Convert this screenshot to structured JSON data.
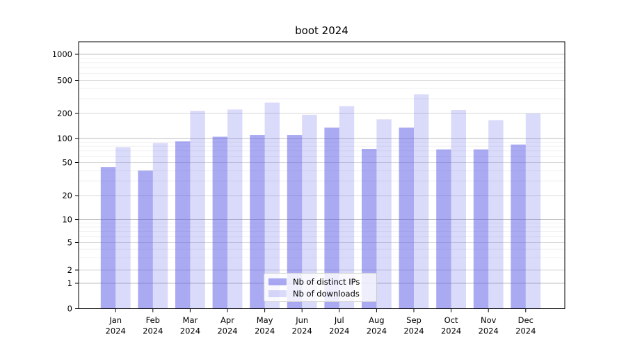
{
  "chart_data": {
    "type": "bar",
    "title": "boot 2024",
    "x_categories": [
      "Jan",
      "Feb",
      "Mar",
      "Apr",
      "May",
      "Jun",
      "Jul",
      "Aug",
      "Sep",
      "Oct",
      "Nov",
      "Dec"
    ],
    "x_year_label": "2024",
    "series": [
      {
        "name": "Nb of distinct IPs",
        "color": "#5555e6",
        "opacity": 0.5,
        "values": [
          44,
          40,
          92,
          105,
          110,
          110,
          135,
          74,
          135,
          73,
          73,
          84
        ]
      },
      {
        "name": "Nb of downloads",
        "color": "#5555e6",
        "opacity": 0.22,
        "values": [
          78,
          88,
          215,
          223,
          270,
          193,
          245,
          170,
          340,
          220,
          166,
          199
        ]
      }
    ],
    "y_axis": {
      "scale": "symlog",
      "ticks": [
        0,
        1,
        2,
        5,
        10,
        20,
        50,
        100,
        200,
        500,
        1000
      ],
      "range": [
        0,
        1000
      ]
    },
    "grid": {
      "on": true,
      "minor_ticks": [
        3,
        4,
        6,
        7,
        8,
        9,
        30,
        40,
        60,
        70,
        80,
        90,
        300,
        400,
        600,
        700,
        800,
        900
      ],
      "major_color": "#bdbdbd",
      "mid_color": "#d9d9d9",
      "minor_color": "#ededed"
    },
    "legend": {
      "position": "lower center"
    }
  }
}
